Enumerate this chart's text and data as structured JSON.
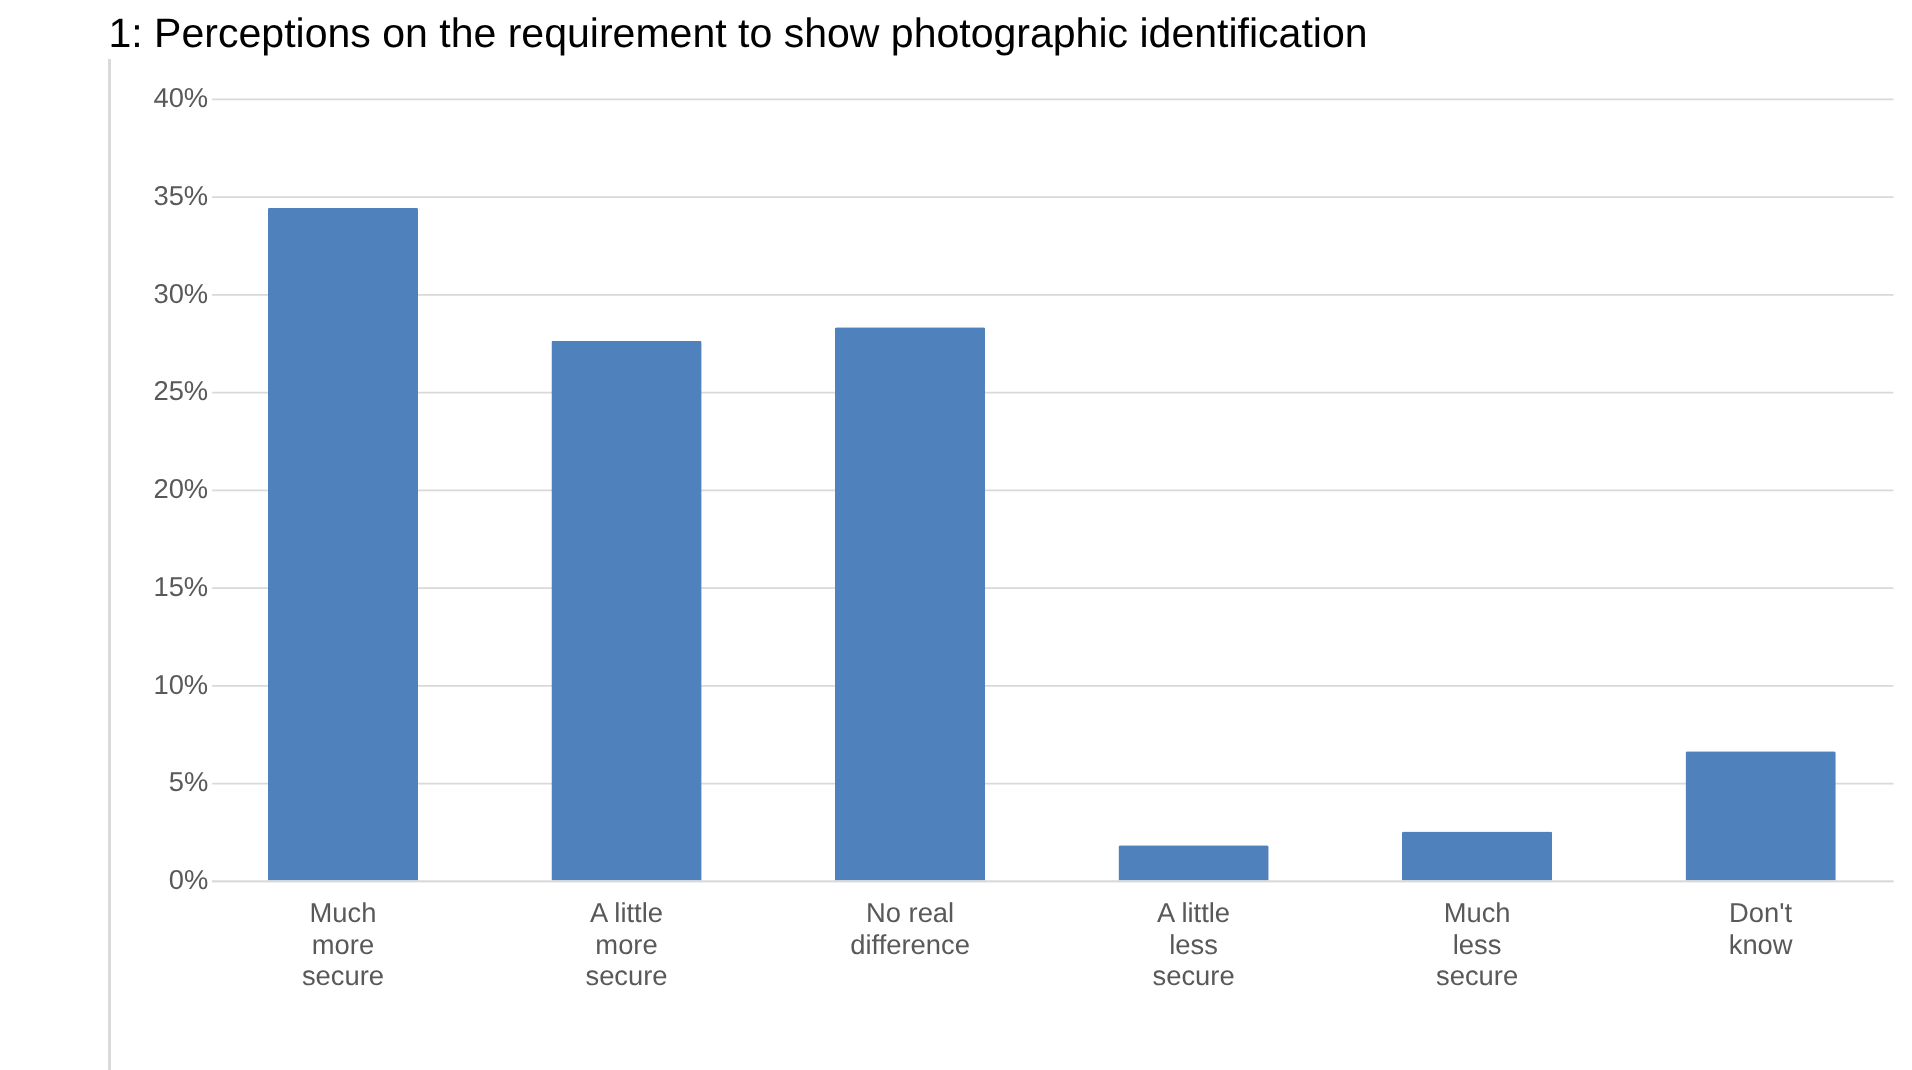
{
  "chart_data": {
    "type": "bar",
    "title": "1: Perceptions on the requirement to show photographic identification",
    "categories": [
      "Much more secure",
      "A little more secure",
      "No real difference",
      "A little less secure",
      "Much less secure",
      "Don't know"
    ],
    "values": [
      0.344,
      0.276,
      0.283,
      0.018,
      0.025,
      0.066
    ],
    "color": "#4f81bd",
    "ylim": [
      0,
      0.4
    ],
    "yticks": [
      {
        "value": 0,
        "label": "0%"
      },
      {
        "value": 0.05,
        "label": "5%"
      },
      {
        "value": 0.1,
        "label": "10%"
      },
      {
        "value": 0.15,
        "label": "15%"
      },
      {
        "value": 0.2,
        "label": "20%"
      },
      {
        "value": 0.25,
        "label": "25%"
      },
      {
        "value": 0.3,
        "label": "30%"
      },
      {
        "value": 0.35,
        "label": "35%"
      },
      {
        "value": 0.4,
        "label": "40%"
      }
    ],
    "grid": "y"
  }
}
